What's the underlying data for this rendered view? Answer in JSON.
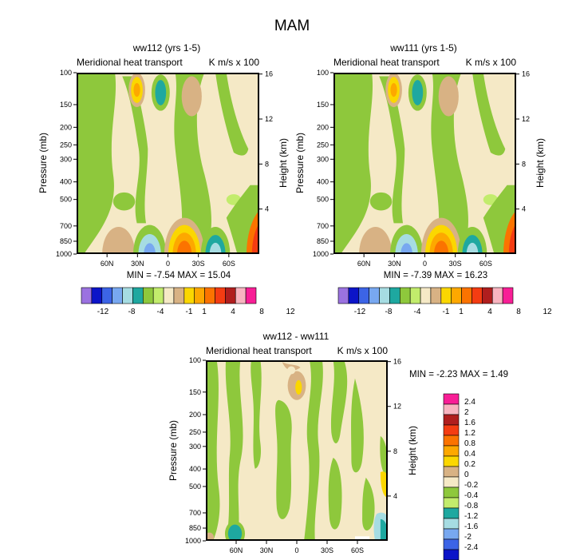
{
  "page": {
    "title": "MAM"
  },
  "colors": {
    "text": "#000000",
    "frame": "#000000",
    "palette_main": [
      "#9b72e0",
      "#0c14c8",
      "#3c64e6",
      "#78a8f0",
      "#a6dce2",
      "#1ea8a0",
      "#8ec83c",
      "#c2ec6c",
      "#f5e9c6",
      "#d8b284",
      "#fbd700",
      "#fda800",
      "#fb7300",
      "#f43c12",
      "#b01e1e",
      "#f8b4c0",
      "#f81e96"
    ],
    "palette_diff": [
      "#f81e96",
      "#f8b4c0",
      "#b01e1e",
      "#f43c12",
      "#fb7300",
      "#fda800",
      "#fbd700",
      "#d8b284",
      "#f5e9c6",
      "#8ec83c",
      "#c2ec6c",
      "#1ea8a0",
      "#a6dce2",
      "#78a8f0",
      "#3c64e6",
      "#0c14c8",
      "#9b72e0"
    ]
  },
  "chart_data": [
    {
      "type": "contour",
      "name": "panel-1",
      "title": "ww112 (yrs 1-5)",
      "left_string": "Meridional heat transport",
      "right_string": "K m/s x 100",
      "ylabel": "Pressure (mb)",
      "ylabel_right": "Height (km)",
      "x_ticks": [
        "60N",
        "30N",
        "0",
        "30S",
        "60S"
      ],
      "x_values": [
        60,
        30,
        0,
        -30,
        -60
      ],
      "xlim": [
        90,
        -90
      ],
      "y_ticks": [
        "100",
        "150",
        "200",
        "250",
        "300",
        "400",
        "500",
        "700",
        "850",
        "1000"
      ],
      "y_values": [
        100,
        150,
        200,
        250,
        300,
        400,
        500,
        700,
        850,
        1000
      ],
      "y_right_ticks": [
        "16",
        "12",
        "8",
        "4"
      ],
      "y_right_values": [
        16,
        12,
        8,
        4
      ],
      "ylim": [
        1000,
        100
      ],
      "min_max_text": "MIN = -7.54  MAX = 15.04",
      "min": -7.54,
      "max": 15.04,
      "colorbar_labels": [
        "-12",
        "-8",
        "-4",
        "-1",
        "1",
        "4",
        "8",
        "12"
      ]
    },
    {
      "type": "contour",
      "name": "panel-2",
      "title": "ww111 (yrs 1-5)",
      "left_string": "Meridional heat transport",
      "right_string": "K m/s x 100",
      "ylabel": "Pressure (mb)",
      "ylabel_right": "Height (km)",
      "x_ticks": [
        "60N",
        "30N",
        "0",
        "30S",
        "60S"
      ],
      "x_values": [
        60,
        30,
        0,
        -30,
        -60
      ],
      "xlim": [
        90,
        -90
      ],
      "y_ticks": [
        "100",
        "150",
        "200",
        "250",
        "300",
        "400",
        "500",
        "700",
        "850",
        "1000"
      ],
      "y_values": [
        100,
        150,
        200,
        250,
        300,
        400,
        500,
        700,
        850,
        1000
      ],
      "y_right_ticks": [
        "16",
        "12",
        "8",
        "4"
      ],
      "y_right_values": [
        16,
        12,
        8,
        4
      ],
      "ylim": [
        1000,
        100
      ],
      "min_max_text": "MIN = -7.39  MAX = 16.23",
      "min": -7.39,
      "max": 16.23,
      "colorbar_labels": [
        "-12",
        "-8",
        "-4",
        "-1",
        "1",
        "4",
        "8",
        "12"
      ]
    },
    {
      "type": "contour",
      "name": "panel-3",
      "title": "ww112 - ww111",
      "left_string": "Meridional heat transport",
      "right_string": "K m/s x 100",
      "ylabel": "Pressure (mb)",
      "ylabel_right": "Height (km)",
      "x_ticks": [
        "60N",
        "30N",
        "0",
        "30S",
        "60S"
      ],
      "x_values": [
        60,
        30,
        0,
        -30,
        -60
      ],
      "xlim": [
        90,
        -90
      ],
      "y_ticks": [
        "100",
        "150",
        "200",
        "250",
        "300",
        "400",
        "500",
        "700",
        "850",
        "1000"
      ],
      "y_values": [
        100,
        150,
        200,
        250,
        300,
        400,
        500,
        700,
        850,
        1000
      ],
      "y_right_ticks": [
        "16",
        "12",
        "8",
        "4"
      ],
      "y_right_values": [
        16,
        12,
        8,
        4
      ],
      "ylim": [
        1000,
        100
      ],
      "min_max_text": "MIN = -2.23  MAX =  1.49",
      "min": -2.23,
      "max": 1.49,
      "colorbar_labels": [
        "2.4",
        "2",
        "1.6",
        "1.2",
        "0.8",
        "0.4",
        "0.2",
        "0",
        "-0.2",
        "-0.4",
        "-0.8",
        "-1.2",
        "-1.6",
        "-2",
        "-2.4"
      ]
    }
  ]
}
